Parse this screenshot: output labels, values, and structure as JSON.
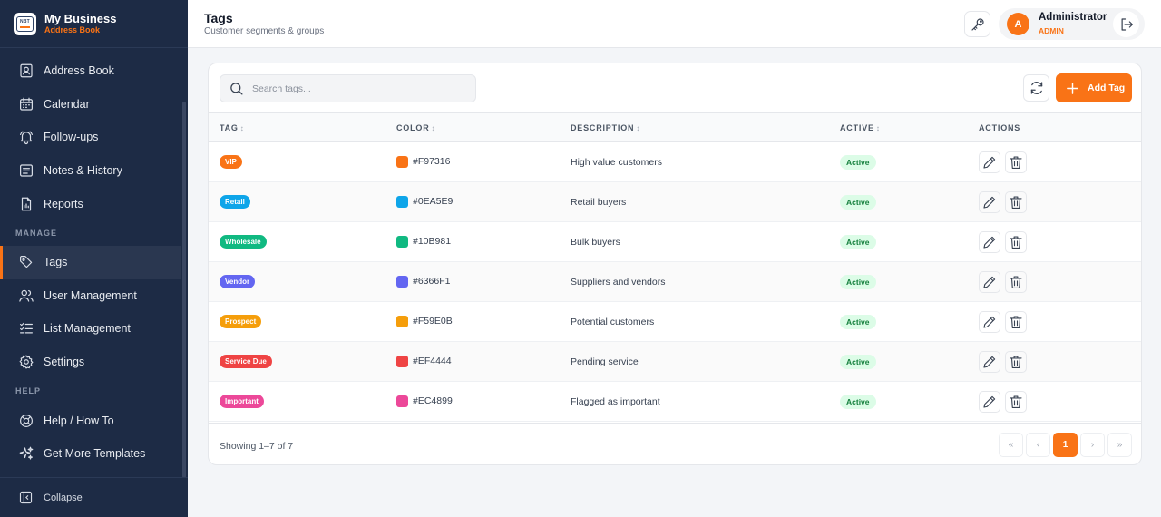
{
  "brand": {
    "title": "My Business",
    "subtitle": "Address Book",
    "logo_text": "NBT"
  },
  "nav": {
    "items": [
      {
        "label": "Address Book"
      },
      {
        "label": "Calendar"
      },
      {
        "label": "Follow-ups"
      },
      {
        "label": "Notes & History"
      },
      {
        "label": "Reports"
      }
    ],
    "manage_label": "MANAGE",
    "manage_items": [
      {
        "label": "Tags"
      },
      {
        "label": "User Management"
      },
      {
        "label": "List Management"
      },
      {
        "label": "Settings"
      }
    ],
    "help_label": "HELP",
    "help_items": [
      {
        "label": "Help / How To"
      },
      {
        "label": "Get More Templates"
      }
    ],
    "active": "Tags",
    "collapse_label": "Collapse"
  },
  "header": {
    "title": "Tags",
    "subtitle": "Customer segments & groups",
    "user_initial": "A",
    "user_name": "Administrator",
    "user_role": "ADMIN"
  },
  "toolbar": {
    "search_placeholder": "Search tags...",
    "add_label": "Add Tag"
  },
  "table": {
    "columns": [
      "TAG",
      "COLOR",
      "DESCRIPTION",
      "ACTIVE",
      "ACTIONS"
    ],
    "rows": [
      {
        "tag": "VIP",
        "color": "#F97316",
        "description": "High value customers",
        "active": "Active"
      },
      {
        "tag": "Retail",
        "color": "#0EA5E9",
        "description": "Retail buyers",
        "active": "Active"
      },
      {
        "tag": "Wholesale",
        "color": "#10B981",
        "description": "Bulk buyers",
        "active": "Active"
      },
      {
        "tag": "Vendor",
        "color": "#6366F1",
        "description": "Suppliers and vendors",
        "active": "Active"
      },
      {
        "tag": "Prospect",
        "color": "#F59E0B",
        "description": "Potential customers",
        "active": "Active"
      },
      {
        "tag": "Service Due",
        "color": "#EF4444",
        "description": "Pending service",
        "active": "Active"
      },
      {
        "tag": "Important",
        "color": "#EC4899",
        "description": "Flagged as important",
        "active": "Active"
      }
    ]
  },
  "footer": {
    "showing": "Showing 1–7 of 7",
    "pager": {
      "first": "«",
      "prev": "‹",
      "current": "1",
      "next": "›",
      "last": "»"
    }
  },
  "colors": {
    "sidebar_bg": "#1D2B45",
    "accent": "#F97316",
    "active_green": "#15803D"
  },
  "icons": {
    "nav": [
      "address-book-icon",
      "calendar-icon",
      "bell-icon",
      "notes-icon",
      "report-icon",
      "tag-icon",
      "users-icon",
      "list-check-icon",
      "gear-icon",
      "lifebuoy-icon",
      "sparkles-icon"
    ],
    "header": [
      "key-icon",
      "logout-icon"
    ],
    "toolbar": [
      "search-icon",
      "refresh-icon",
      "plus-icon"
    ],
    "row_actions": [
      "pencil-icon",
      "trash-icon"
    ]
  }
}
